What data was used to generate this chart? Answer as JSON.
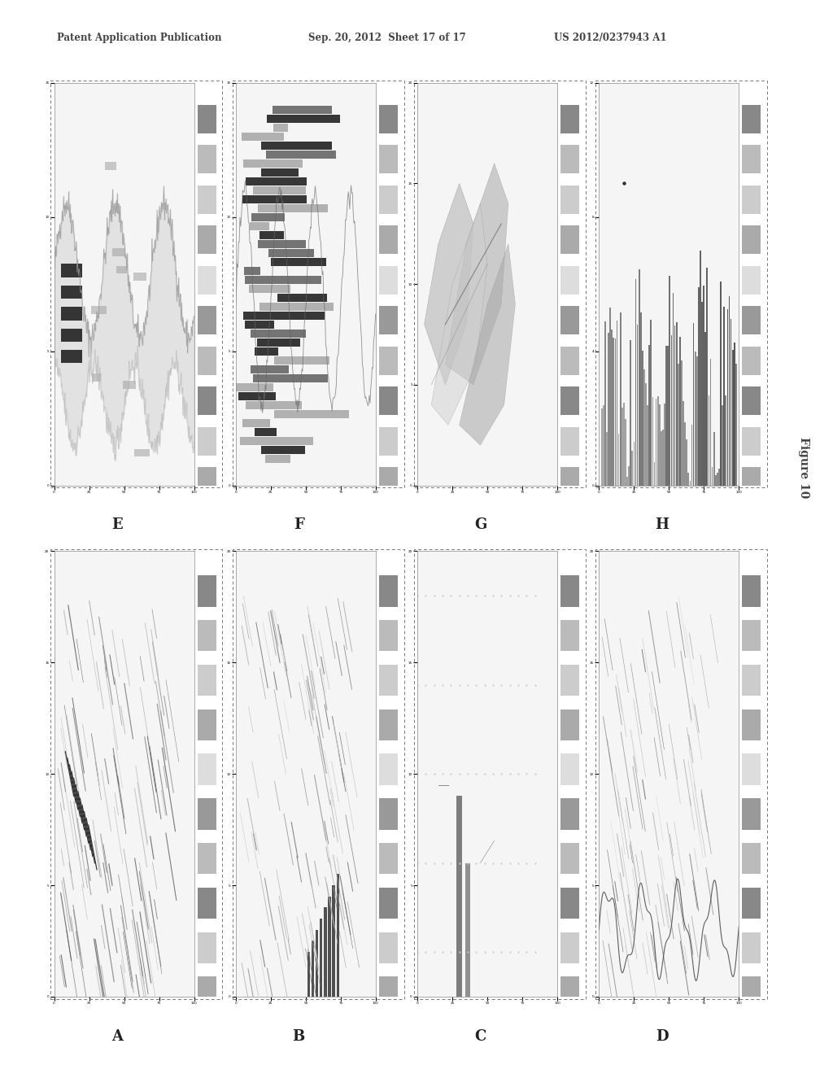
{
  "header_left": "Patent Application Publication",
  "header_mid": "Sep. 20, 2012  Sheet 17 of 17",
  "header_right": "US 2012/0237943 A1",
  "figure_label": "Figure 10",
  "panel_labels_top": [
    "E",
    "F",
    "G",
    "H"
  ],
  "panel_labels_bottom": [
    "A",
    "B",
    "C",
    "D"
  ],
  "bg_color": "#ffffff",
  "panel_bg": "#ffffff",
  "inner_bg": "#f5f5f5",
  "border_color": "#888888",
  "text_color": "#444444",
  "dark_bar_color": "#333333",
  "mid_bar_color": "#888888",
  "light_bar_color": "#bbbbbb",
  "side_colors": [
    "#999999",
    "#bbbbbb",
    "#dddddd"
  ],
  "header_fontsize": 8.5,
  "label_fontsize": 13
}
